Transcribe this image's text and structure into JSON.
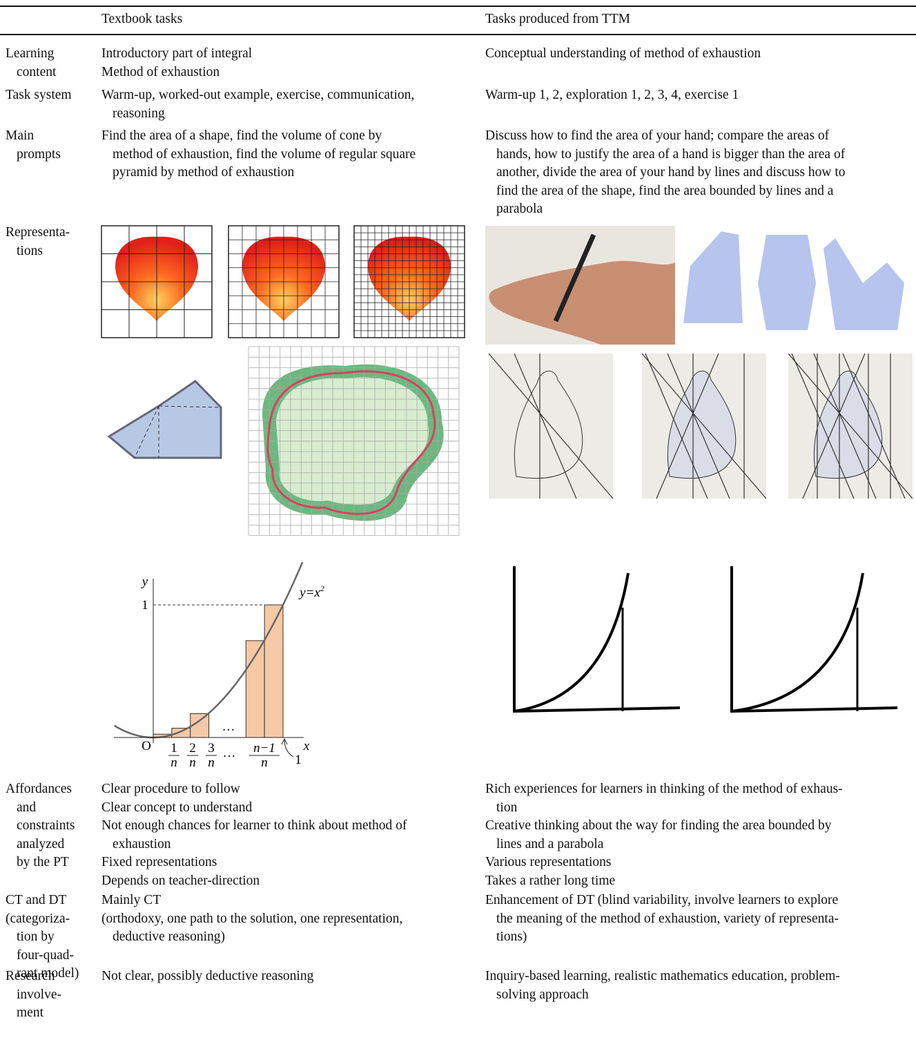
{
  "table": {
    "headers": [
      "Textbook tasks",
      "Tasks produced from TTM"
    ],
    "rows": [
      {
        "label": [
          [
            "Learning",
            "content"
          ]
        ],
        "textbook": [
          [
            "Introductory part of integral"
          ],
          [
            "Method of exhaustion"
          ]
        ],
        "ttm": [
          [
            "Conceptual understanding of method of exhaustion"
          ]
        ]
      },
      {
        "label": [
          [
            "Task system"
          ]
        ],
        "textbook": [
          [
            "Warm-up, worked-out example, exercise, communication,",
            "reasoning"
          ]
        ],
        "ttm": [
          [
            "Warm-up 1, 2, exploration 1, 2, 3, 4, exercise 1"
          ]
        ]
      },
      {
        "label": [
          [
            "Main",
            "prompts"
          ]
        ],
        "textbook": [
          [
            "Find the area of a shape, find the volume of cone by",
            "method of exhaustion, find the volume of regular square",
            "pyramid by method of exhaustion"
          ]
        ],
        "ttm": [
          [
            "Discuss how to find the area of your hand; compare the areas of",
            "hands, how to justify the area of a hand is bigger than the area of",
            "another, divide the area of your hand by lines and discuss how to",
            "find the area of the shape, find the area bounded by lines and a",
            "parabola"
          ]
        ]
      },
      {
        "label": [
          [
            "Representa-",
            "tions"
          ]
        ],
        "textbook": [],
        "ttm": []
      },
      {
        "label": [
          [
            "Affordances",
            "and",
            "constraints",
            "analyzed",
            "by the PT"
          ]
        ],
        "textbook": [
          [
            "Clear procedure to follow"
          ],
          [
            "Clear concept to understand"
          ],
          [
            "Not enough chances for learner to think about method of",
            "exhaustion"
          ],
          [
            "Fixed representations"
          ],
          [
            "Depends on teacher-direction"
          ]
        ],
        "ttm": [
          [
            "Rich experiences for learners in thinking of the method of exhaus-",
            "tion"
          ],
          [
            "Creative thinking about the way for finding the area bounded by",
            "lines and a parabola"
          ],
          [
            "Various representations"
          ],
          [
            "Takes a rather long time"
          ]
        ]
      },
      {
        "label": [
          [
            "CT and DT"
          ],
          [
            "(categoriza-",
            "tion by",
            "four-quad-",
            "rant model)"
          ]
        ],
        "textbook": [
          [
            "Mainly CT"
          ],
          [
            "(orthodoxy, one path to the solution, one representation,",
            "deductive reasoning)"
          ]
        ],
        "ttm": [
          [
            "Enhancement of DT (blind variability, involve learners to explore",
            "the meaning of the method of exhaustion, variety of representa-",
            "tions)"
          ]
        ]
      },
      {
        "label": [
          [
            "Research",
            "involve-",
            "ment"
          ]
        ],
        "textbook": [
          [
            "Not clear, possibly deductive reasoning"
          ]
        ],
        "ttm": [
          [
            "Inquiry-based learning, realistic mathematics education, problem-",
            "solving approach"
          ]
        ]
      }
    ]
  },
  "parabola_figure": {
    "y_label": "y",
    "x_label": "x",
    "origin": "O",
    "tick_one": "1",
    "curve_label": "y=x",
    "curve_exponent": "2",
    "x_ticks": [
      {
        "num": "1",
        "den": "n"
      },
      {
        "num": "2",
        "den": "n"
      },
      {
        "num": "3",
        "den": "n"
      },
      {
        "num": "n−1",
        "den": "n"
      }
    ],
    "ellipsis": "…",
    "end_label": "1"
  }
}
